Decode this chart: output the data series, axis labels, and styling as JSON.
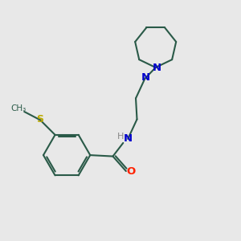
{
  "bg_color": "#e8e8e8",
  "bond_color": "#2a5a48",
  "N_color": "#0000cc",
  "O_color": "#ff2200",
  "S_color": "#bbaa00",
  "H_color": "#888888",
  "lw": 1.5,
  "fig_w": 3.0,
  "fig_h": 3.0,
  "dpi": 100,
  "xlim": [
    0,
    10
  ],
  "ylim": [
    0,
    10
  ]
}
